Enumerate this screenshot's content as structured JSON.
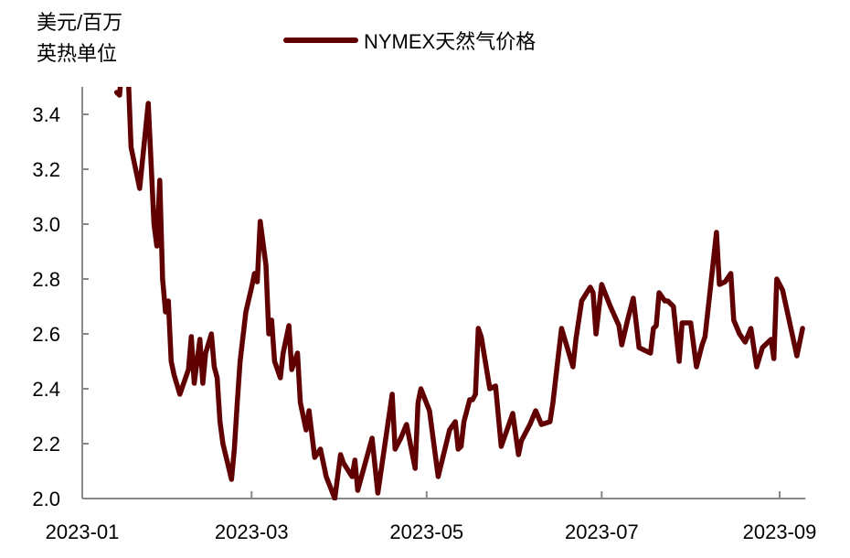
{
  "chart_data": {
    "type": "line",
    "title": "",
    "ylabel_lines": [
      "美元/百万",
      "英热单位"
    ],
    "xlabel": "",
    "ylim": [
      2.0,
      3.5
    ],
    "xlim": [
      "2023-01-01",
      "2023-09-10"
    ],
    "yticks": [
      "2.0",
      "2.2",
      "2.4",
      "2.6",
      "2.8",
      "3.0",
      "3.2",
      "3.4"
    ],
    "ytick_values": [
      2.0,
      2.2,
      2.4,
      2.6,
      2.8,
      3.0,
      3.2,
      3.4
    ],
    "xticks": [
      "2023-01",
      "2023-03",
      "2023-05",
      "2023-07",
      "2023-09"
    ],
    "xtick_dates": [
      "2023-01-01",
      "2023-03-01",
      "2023-05-01",
      "2023-07-01",
      "2023-09-01"
    ],
    "grid": false,
    "legend_position": "top-center",
    "series": [
      {
        "name": "NYMEX天然气价格",
        "color": "#600000",
        "points": [
          [
            "2023-01-13",
            3.48
          ],
          [
            "2023-01-14",
            3.47
          ],
          [
            "2023-01-15",
            3.6
          ],
          [
            "2023-01-17",
            3.55
          ],
          [
            "2023-01-18",
            3.28
          ],
          [
            "2023-01-21",
            3.13
          ],
          [
            "2023-01-24",
            3.44
          ],
          [
            "2023-01-26",
            3.0
          ],
          [
            "2023-01-27",
            2.92
          ],
          [
            "2023-01-28",
            3.16
          ],
          [
            "2023-01-29",
            2.8
          ],
          [
            "2023-01-30",
            2.68
          ],
          [
            "2023-01-31",
            2.72
          ],
          [
            "2023-02-01",
            2.5
          ],
          [
            "2023-02-02",
            2.45
          ],
          [
            "2023-02-04",
            2.38
          ],
          [
            "2023-02-07",
            2.47
          ],
          [
            "2023-02-08",
            2.59
          ],
          [
            "2023-02-09",
            2.42
          ],
          [
            "2023-02-10",
            2.5
          ],
          [
            "2023-02-11",
            2.58
          ],
          [
            "2023-02-12",
            2.42
          ],
          [
            "2023-02-13",
            2.53
          ],
          [
            "2023-02-15",
            2.6
          ],
          [
            "2023-02-16",
            2.48
          ],
          [
            "2023-02-17",
            2.44
          ],
          [
            "2023-02-18",
            2.28
          ],
          [
            "2023-02-19",
            2.2
          ],
          [
            "2023-02-22",
            2.07
          ],
          [
            "2023-02-23",
            2.18
          ],
          [
            "2023-02-24",
            2.35
          ],
          [
            "2023-02-25",
            2.5
          ],
          [
            "2023-02-27",
            2.68
          ],
          [
            "2023-03-01",
            2.77
          ],
          [
            "2023-03-02",
            2.82
          ],
          [
            "2023-03-03",
            2.79
          ],
          [
            "2023-03-04",
            3.01
          ],
          [
            "2023-03-06",
            2.85
          ],
          [
            "2023-03-07",
            2.6
          ],
          [
            "2023-03-08",
            2.65
          ],
          [
            "2023-03-09",
            2.5
          ],
          [
            "2023-03-11",
            2.44
          ],
          [
            "2023-03-12",
            2.53
          ],
          [
            "2023-03-14",
            2.63
          ],
          [
            "2023-03-15",
            2.47
          ],
          [
            "2023-03-17",
            2.53
          ],
          [
            "2023-03-18",
            2.35
          ],
          [
            "2023-03-20",
            2.25
          ],
          [
            "2023-03-21",
            2.32
          ],
          [
            "2023-03-23",
            2.15
          ],
          [
            "2023-03-25",
            2.18
          ],
          [
            "2023-03-27",
            2.08
          ],
          [
            "2023-03-30",
            2.0
          ],
          [
            "2023-04-01",
            2.16
          ],
          [
            "2023-04-02",
            2.13
          ],
          [
            "2023-04-05",
            2.08
          ],
          [
            "2023-04-06",
            2.14
          ],
          [
            "2023-04-07",
            2.03
          ],
          [
            "2023-04-12",
            2.22
          ],
          [
            "2023-04-14",
            2.02
          ],
          [
            "2023-04-19",
            2.38
          ],
          [
            "2023-04-20",
            2.18
          ],
          [
            "2023-04-22",
            2.22
          ],
          [
            "2023-04-24",
            2.27
          ],
          [
            "2023-04-27",
            2.11
          ],
          [
            "2023-04-28",
            2.35
          ],
          [
            "2023-04-29",
            2.4
          ],
          [
            "2023-05-02",
            2.32
          ],
          [
            "2023-05-05",
            2.08
          ],
          [
            "2023-05-09",
            2.25
          ],
          [
            "2023-05-11",
            2.28
          ],
          [
            "2023-05-12",
            2.18
          ],
          [
            "2023-05-13",
            2.19
          ],
          [
            "2023-05-14",
            2.28
          ],
          [
            "2023-05-16",
            2.36
          ],
          [
            "2023-05-17",
            2.36
          ],
          [
            "2023-05-18",
            2.38
          ],
          [
            "2023-05-19",
            2.62
          ],
          [
            "2023-05-20",
            2.59
          ],
          [
            "2023-05-23",
            2.4
          ],
          [
            "2023-05-25",
            2.41
          ],
          [
            "2023-05-27",
            2.19
          ],
          [
            "2023-05-31",
            2.31
          ],
          [
            "2023-06-02",
            2.16
          ],
          [
            "2023-06-03",
            2.21
          ],
          [
            "2023-06-06",
            2.27
          ],
          [
            "2023-06-08",
            2.32
          ],
          [
            "2023-06-10",
            2.27
          ],
          [
            "2023-06-13",
            2.28
          ],
          [
            "2023-06-14",
            2.35
          ],
          [
            "2023-06-16",
            2.53
          ],
          [
            "2023-06-17",
            2.62
          ],
          [
            "2023-06-21",
            2.48
          ],
          [
            "2023-06-22",
            2.58
          ],
          [
            "2023-06-24",
            2.72
          ],
          [
            "2023-06-27",
            2.77
          ],
          [
            "2023-06-28",
            2.75
          ],
          [
            "2023-06-29",
            2.6
          ],
          [
            "2023-07-01",
            2.78
          ],
          [
            "2023-07-04",
            2.7
          ],
          [
            "2023-07-07",
            2.63
          ],
          [
            "2023-07-08",
            2.56
          ],
          [
            "2023-07-10",
            2.65
          ],
          [
            "2023-07-12",
            2.73
          ],
          [
            "2023-07-14",
            2.55
          ],
          [
            "2023-07-18",
            2.53
          ],
          [
            "2023-07-19",
            2.62
          ],
          [
            "2023-07-20",
            2.63
          ],
          [
            "2023-07-21",
            2.75
          ],
          [
            "2023-07-23",
            2.72
          ],
          [
            "2023-07-24",
            2.72
          ],
          [
            "2023-07-26",
            2.7
          ],
          [
            "2023-07-28",
            2.5
          ],
          [
            "2023-07-29",
            2.64
          ],
          [
            "2023-08-01",
            2.64
          ],
          [
            "2023-08-03",
            2.48
          ],
          [
            "2023-08-05",
            2.56
          ],
          [
            "2023-08-06",
            2.59
          ],
          [
            "2023-08-08",
            2.78
          ],
          [
            "2023-08-10",
            2.97
          ],
          [
            "2023-08-11",
            2.78
          ],
          [
            "2023-08-13",
            2.79
          ],
          [
            "2023-08-15",
            2.82
          ],
          [
            "2023-08-16",
            2.65
          ],
          [
            "2023-08-18",
            2.6
          ],
          [
            "2023-08-20",
            2.57
          ],
          [
            "2023-08-22",
            2.62
          ],
          [
            "2023-08-24",
            2.48
          ],
          [
            "2023-08-26",
            2.55
          ],
          [
            "2023-08-29",
            2.58
          ],
          [
            "2023-08-30",
            2.51
          ],
          [
            "2023-08-31",
            2.8
          ],
          [
            "2023-09-02",
            2.76
          ],
          [
            "2023-09-07",
            2.52
          ],
          [
            "2023-09-09",
            2.62
          ]
        ]
      }
    ]
  }
}
